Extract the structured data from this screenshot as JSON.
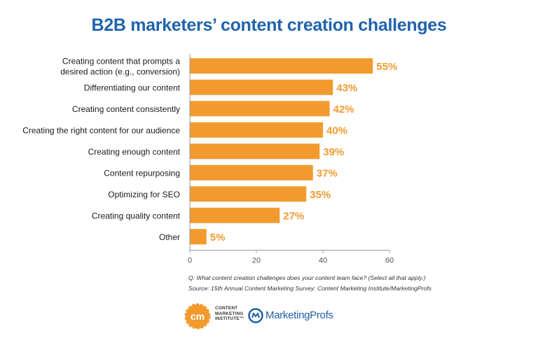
{
  "header": {
    "title": "B2B marketers’ content creation challenges"
  },
  "chart_data": {
    "type": "bar",
    "orientation": "horizontal",
    "categories": [
      [
        "Creating content that prompts a",
        "desired action (e.g., conversion)"
      ],
      [
        "Differentiating our content"
      ],
      [
        "Creating content consistently"
      ],
      [
        "Creating the right content for our audience"
      ],
      [
        "Creating enough content"
      ],
      [
        "Content repurposing"
      ],
      [
        "Optimizing for SEO"
      ],
      [
        "Creating quality content"
      ],
      [
        "Other"
      ]
    ],
    "values": [
      55,
      43,
      42,
      40,
      39,
      37,
      35,
      27,
      5
    ],
    "value_labels": [
      "55%",
      "43%",
      "42%",
      "40%",
      "39%",
      "37%",
      "35%",
      "27%",
      "5%"
    ],
    "xlim": [
      0,
      60
    ],
    "xticks": [
      0,
      20,
      40,
      60
    ],
    "grid": false,
    "bar_color": "#f29a2e",
    "label_color": "#f29a2e"
  },
  "footer": {
    "question": "Q: What content creation challenges does your content team face? (Select all that apply.)",
    "source": "Source: 15th Annual Content Marketing Survey: Content Marketing Institute/MarketingProfs"
  },
  "logos": {
    "cmi_mark": "cm",
    "cmi_text": "CONTENT\nMARKETING\nINSTITUTE™",
    "mp_text": "MarketingProfs",
    "cmi_color": "#f29a2e",
    "mp_color": "#1f5fa8"
  }
}
